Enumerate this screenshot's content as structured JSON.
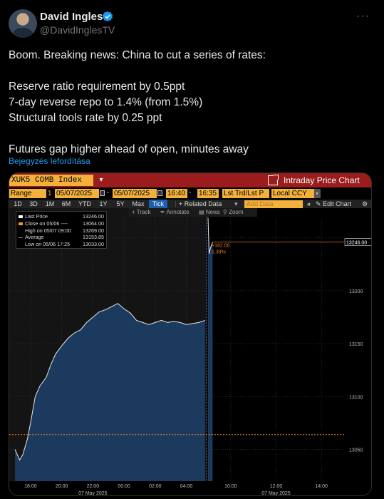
{
  "tweet": {
    "author": {
      "name": "David Ingles",
      "handle": "@DavidInglesTV",
      "verified_icon": "verified-badge-icon"
    },
    "more_icon": "more-icon",
    "lines": [
      "Boom. Breaking news: China to cut a series of rates:",
      "",
      "Reserve ratio requirement by 0.5ppt",
      "7-day reverse repo to 1.4% (from 1.5%)",
      "Structural tools rate by 0.25 ppt",
      "",
      "Futures gap higher ahead of open, minutes away"
    ],
    "translate_label": "Bejegyzés lefordítása"
  },
  "terminal": {
    "ticker": "XUK5 COMB Index",
    "window_title": "Intraday Price Chart",
    "range_label": "Range",
    "range_count": "1",
    "range_start": "05/07/2025",
    "range_end": "05/07/2025",
    "time_start": "16:40",
    "time_end": "16:35",
    "price_field": "Lst Trd/Lst P",
    "currency": "Local CCY",
    "periods": [
      "1D",
      "3D",
      "1M",
      "6M",
      "YTD",
      "1Y",
      "5Y",
      "Max",
      "Tick"
    ],
    "selected_period": "Tick",
    "related_data": "+ Related Data",
    "add_data_placeholder": "Add Data",
    "edit_chart": "Edit Chart",
    "tools": [
      "Track",
      "Annotate",
      "News",
      "Zoom"
    ],
    "legend": [
      {
        "label": "Last Price",
        "value": "13246.00",
        "color": "#ffffff"
      },
      {
        "label": "Close on 05/06 ----",
        "value": "13064.00",
        "color": "#f39c12"
      },
      {
        "label": "High on 05/07 09:00",
        "value": "13269.00",
        "color": "#888888"
      },
      {
        "label": "Average",
        "value": "13153.85",
        "color": "#888888"
      },
      {
        "label": "Low on 05/06 17:25",
        "value": "13033.00",
        "color": "#888888"
      }
    ],
    "change_abs": "+182.00",
    "change_pct": "1.39%",
    "last_price_tag": "13246.00"
  },
  "chart_data": {
    "type": "area",
    "y_ticks": [
      13050,
      13100,
      13150,
      13200,
      13250
    ],
    "ylim": [
      13020,
      13270
    ],
    "x_tick_labels": [
      "18:00",
      "20:00",
      "22:00",
      "00:00",
      "02:00",
      "04:00",
      "10:00",
      "12:00",
      "14:00"
    ],
    "date_labels": [
      "07 May 2025",
      "07 May 2025"
    ],
    "previous_close": 13064,
    "series": [
      {
        "session": "overnight",
        "x_hours": [
          17.0,
          17.3,
          17.5,
          17.8,
          18.0,
          18.3,
          18.6,
          19.0,
          19.3,
          19.6,
          20.0,
          20.4,
          20.8,
          21.2,
          21.6,
          22.0,
          22.4,
          22.8,
          23.2,
          23.6,
          24.0,
          24.4,
          24.8,
          25.2,
          25.6,
          26.0,
          26.4,
          26.8,
          27.2,
          27.6,
          28.0,
          28.4,
          28.8,
          29.2
        ],
        "values": [
          13050,
          13040,
          13045,
          13060,
          13075,
          13100,
          13110,
          13118,
          13130,
          13140,
          13148,
          13155,
          13160,
          13163,
          13170,
          13175,
          13180,
          13182,
          13185,
          13188,
          13183,
          13179,
          13172,
          13170,
          13168,
          13170,
          13172,
          13170,
          13171,
          13170,
          13168,
          13169,
          13170,
          13172
        ]
      },
      {
        "session": "open",
        "x_hours": [
          9.0,
          9.05,
          9.1,
          9.2
        ],
        "values": [
          13269,
          13235,
          13240,
          13246
        ]
      }
    ]
  }
}
